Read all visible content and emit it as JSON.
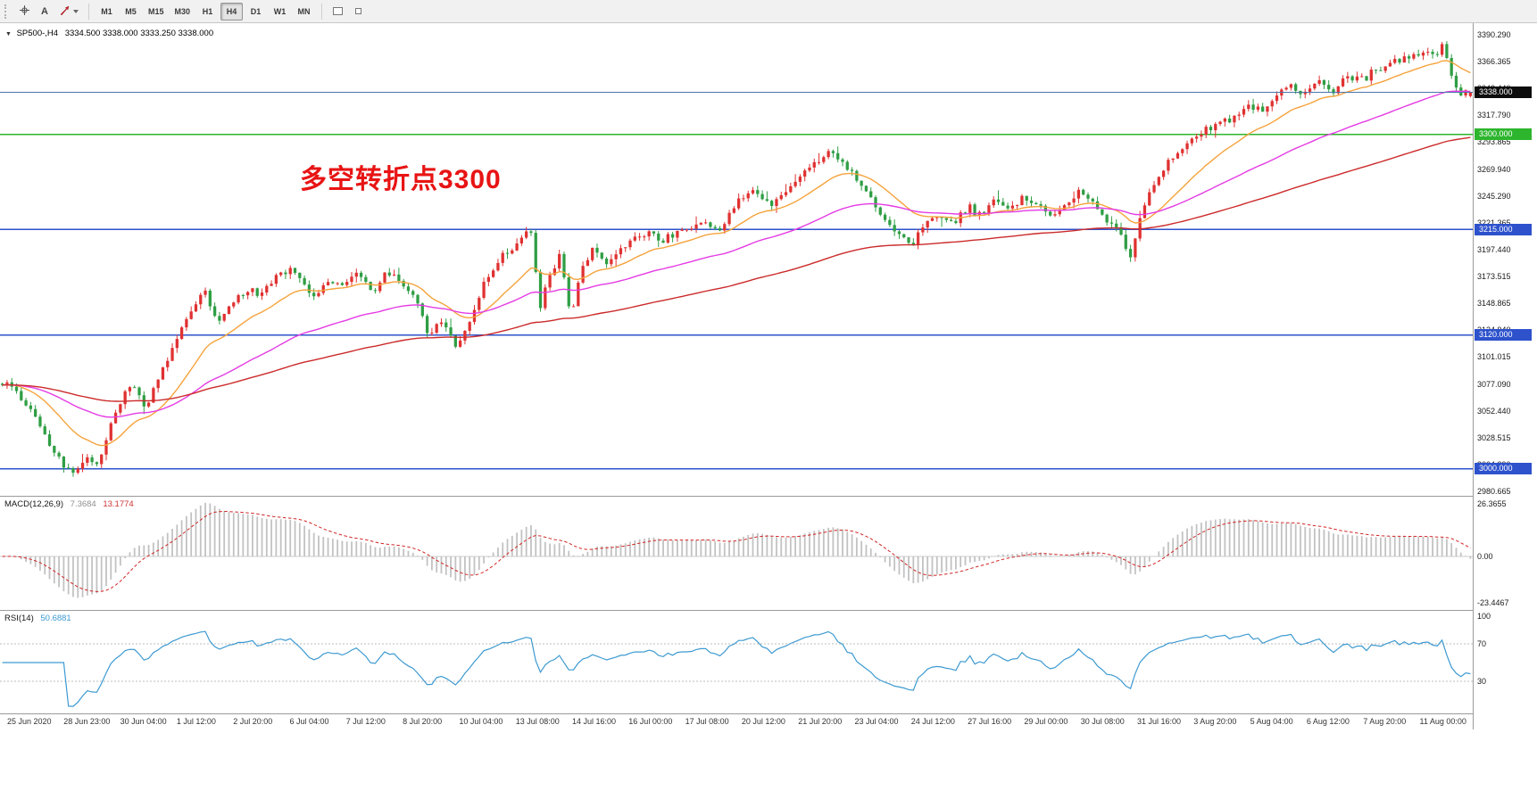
{
  "toolbar": {
    "tools": [
      {
        "name": "crosshair-tool"
      },
      {
        "name": "text-tool",
        "label": "A"
      },
      {
        "name": "arrows-tool"
      }
    ],
    "timeframes": [
      "M1",
      "M5",
      "M15",
      "M30",
      "H1",
      "H4",
      "D1",
      "W1",
      "MN"
    ],
    "active_timeframe": "H4"
  },
  "chart": {
    "title": {
      "dropdown_glyph": "▼",
      "symbol_period": "SP500-,H4",
      "ohlc": "3334.500 3338.000 3333.250 3338.000"
    },
    "annotation": {
      "text": "多空转折点3300",
      "color": "#e81414"
    },
    "level_tags": [
      {
        "name": "current-price",
        "label": "3338.000",
        "price": 3338.0,
        "bg": "#0d0d0d",
        "line": "#4a74a8"
      },
      {
        "name": "green-level",
        "label": "3300.000",
        "price": 3300.0,
        "bg": "#2db52d",
        "line": "#2db52d"
      },
      {
        "name": "blue-level-1",
        "label": "3215.000",
        "price": 3215.0,
        "bg": "#2d52cc",
        "line": "#2d52cc"
      },
      {
        "name": "blue-level-2",
        "label": "3120.000",
        "price": 3120.0,
        "bg": "#2d52cc",
        "line": "#2d52cc"
      },
      {
        "name": "blue-level-3",
        "label": "3000.000",
        "price": 3000.0,
        "bg": "#2d52cc",
        "line": "#2d52cc"
      }
    ]
  },
  "macd_panel": {
    "title": "MACD(12,26,9)",
    "value_main": "7.3684",
    "value_signal": "13.1774",
    "axis_labels": [
      "26.3655",
      "0.00",
      "-23.4467"
    ]
  },
  "rsi_panel": {
    "title": "RSI(14)",
    "value": "50.6881",
    "axis_labels": [
      "100",
      "70",
      "30"
    ]
  },
  "chart_data": {
    "type": "candlestick",
    "symbol": "SP500-",
    "timeframe": "H4",
    "current_ohlc": {
      "open": 3334.5,
      "high": 3338.0,
      "low": 3333.25,
      "close": 3338.0
    },
    "y_axis_range": [
      2980.665,
      3390.29
    ],
    "y_axis_labels": [
      "3390.290",
      "3366.365",
      "3342.440",
      "3317.790",
      "3293.865",
      "3269.940",
      "3245.290",
      "3221.365",
      "3197.440",
      "3173.515",
      "3148.865",
      "3124.940",
      "3101.015",
      "3077.090",
      "3052.440",
      "3028.515",
      "3004.390",
      "2980.665"
    ],
    "x_labels": [
      "25 Jun 2020",
      "28 Jun 23:00",
      "30 Jun 04:00",
      "1 Jul 12:00",
      "2 Jul 20:00",
      "6 Jul 04:00",
      "7 Jul 12:00",
      "8 Jul 20:00",
      "10 Jul 04:00",
      "13 Jul 08:00",
      "14 Jul 16:00",
      "16 Jul 00:00",
      "17 Jul 08:00",
      "20 Jul 12:00",
      "21 Jul 20:00",
      "23 Jul 04:00",
      "24 Jul 12:00",
      "27 Jul 16:00",
      "29 Jul 00:00",
      "30 Jul 08:00",
      "31 Jul 16:00",
      "3 Aug 20:00",
      "5 Aug 04:00",
      "6 Aug 12:00",
      "7 Aug 20:00",
      "11 Aug 00:00"
    ],
    "horizontal_levels": [
      3338.0,
      3300.0,
      3215.0,
      3120.0,
      3000.0
    ],
    "candle_count": 312,
    "colors": {
      "up": "#e03131",
      "down": "#2f9e44",
      "macd_hist": "#c2c2c2",
      "macd_signal": "#d22626",
      "rsi_line": "#3d9ad1"
    },
    "moving_averages": [
      {
        "name": "ma-fast",
        "period": 18,
        "color": "#f5a33c"
      },
      {
        "name": "ma-mid",
        "period": 55,
        "color": "#e43ce4"
      },
      {
        "name": "ma-slow",
        "period": 130,
        "color": "#cc2a2a"
      }
    ],
    "price_path_anchors": [
      [
        0.0,
        3078
      ],
      [
        0.012,
        3062
      ],
      [
        0.022,
        3048
      ],
      [
        0.032,
        3022
      ],
      [
        0.042,
        3004
      ],
      [
        0.05,
        2997
      ],
      [
        0.057,
        3012
      ],
      [
        0.064,
        3001
      ],
      [
        0.072,
        3032
      ],
      [
        0.082,
        3062
      ],
      [
        0.09,
        3076
      ],
      [
        0.098,
        3056
      ],
      [
        0.108,
        3088
      ],
      [
        0.118,
        3114
      ],
      [
        0.128,
        3142
      ],
      [
        0.138,
        3156
      ],
      [
        0.147,
        3132
      ],
      [
        0.157,
        3150
      ],
      [
        0.167,
        3163
      ],
      [
        0.177,
        3158
      ],
      [
        0.187,
        3172
      ],
      [
        0.197,
        3179
      ],
      [
        0.205,
        3163
      ],
      [
        0.213,
        3152
      ],
      [
        0.222,
        3170
      ],
      [
        0.232,
        3166
      ],
      [
        0.242,
        3177
      ],
      [
        0.252,
        3158
      ],
      [
        0.262,
        3173
      ],
      [
        0.272,
        3166
      ],
      [
        0.282,
        3150
      ],
      [
        0.291,
        3122
      ],
      [
        0.3,
        3137
      ],
      [
        0.309,
        3108
      ],
      [
        0.319,
        3131
      ],
      [
        0.33,
        3170
      ],
      [
        0.34,
        3193
      ],
      [
        0.351,
        3202
      ],
      [
        0.359,
        3224
      ],
      [
        0.366,
        3146
      ],
      [
        0.373,
        3170
      ],
      [
        0.38,
        3190
      ],
      [
        0.387,
        3131
      ],
      [
        0.395,
        3182
      ],
      [
        0.402,
        3197
      ],
      [
        0.412,
        3187
      ],
      [
        0.422,
        3201
      ],
      [
        0.435,
        3211
      ],
      [
        0.45,
        3204
      ],
      [
        0.464,
        3217
      ],
      [
        0.474,
        3223
      ],
      [
        0.488,
        3216
      ],
      [
        0.5,
        3236
      ],
      [
        0.512,
        3246
      ],
      [
        0.524,
        3239
      ],
      [
        0.536,
        3256
      ],
      [
        0.55,
        3269
      ],
      [
        0.562,
        3281
      ],
      [
        0.572,
        3273
      ],
      [
        0.581,
        3262
      ],
      [
        0.59,
        3247
      ],
      [
        0.601,
        3224
      ],
      [
        0.612,
        3209
      ],
      [
        0.62,
        3201
      ],
      [
        0.628,
        3219
      ],
      [
        0.638,
        3229
      ],
      [
        0.648,
        3222
      ],
      [
        0.658,
        3237
      ],
      [
        0.666,
        3229
      ],
      [
        0.676,
        3241
      ],
      [
        0.687,
        3233
      ],
      [
        0.697,
        3243
      ],
      [
        0.705,
        3237
      ],
      [
        0.715,
        3228
      ],
      [
        0.726,
        3243
      ],
      [
        0.735,
        3251
      ],
      [
        0.744,
        3238
      ],
      [
        0.752,
        3222
      ],
      [
        0.761,
        3211
      ],
      [
        0.768,
        3188
      ],
      [
        0.776,
        3232
      ],
      [
        0.782,
        3254
      ],
      [
        0.791,
        3272
      ],
      [
        0.801,
        3284
      ],
      [
        0.811,
        3292
      ],
      [
        0.82,
        3303
      ],
      [
        0.83,
        3311
      ],
      [
        0.84,
        3319
      ],
      [
        0.85,
        3327
      ],
      [
        0.858,
        3322
      ],
      [
        0.867,
        3331
      ],
      [
        0.877,
        3341
      ],
      [
        0.887,
        3336
      ],
      [
        0.897,
        3347
      ],
      [
        0.907,
        3342
      ],
      [
        0.917,
        3353
      ],
      [
        0.927,
        3348
      ],
      [
        0.936,
        3356
      ],
      [
        0.946,
        3363
      ],
      [
        0.956,
        3369
      ],
      [
        0.966,
        3377
      ],
      [
        0.975,
        3371
      ],
      [
        0.982,
        3380
      ],
      [
        0.987,
        3352
      ],
      [
        0.992,
        3331
      ],
      [
        1.0,
        3338
      ]
    ],
    "indicators": {
      "macd": {
        "params": [
          12,
          26,
          9
        ],
        "main": 7.3684,
        "signal": 13.1774,
        "scale_max": 26.3655,
        "scale_min": -23.4467
      },
      "rsi": {
        "period": 14,
        "value": 50.6881,
        "levels": [
          70,
          30
        ]
      }
    }
  }
}
